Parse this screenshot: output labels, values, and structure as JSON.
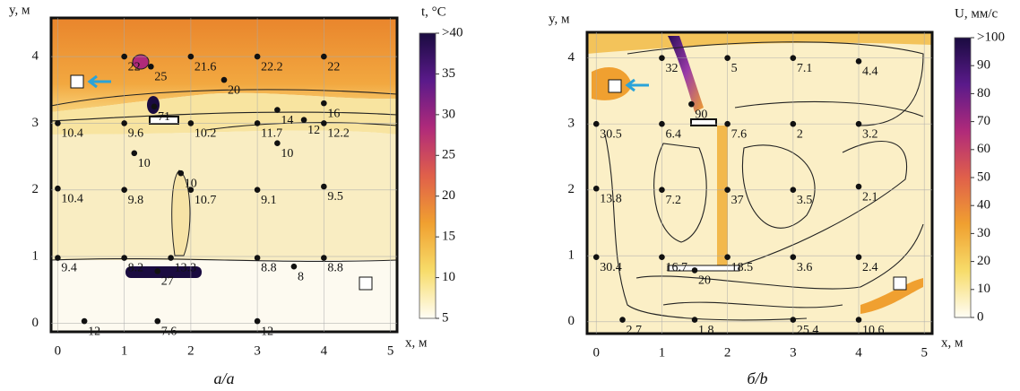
{
  "chart_data": [
    {
      "type": "heatmap",
      "caption": "а/a",
      "x_label": "x, м",
      "y_label": "y, м",
      "colorbar_label": "t, °C",
      "xlim": [
        -0.1,
        5.1
      ],
      "ylim": [
        -0.13,
        4.58
      ],
      "xticks": [
        0,
        1,
        2,
        3,
        4,
        5
      ],
      "yticks": [
        0,
        1,
        2,
        3,
        4
      ],
      "grid": true,
      "colorbar_lim": [
        5,
        40
      ],
      "colorbar_ticks": [
        5,
        10,
        15,
        20,
        25,
        30,
        35,
        {
          "value": 40,
          "label": ">40"
        }
      ],
      "colormap": [
        "#fffdf5",
        "#f7dc6a",
        "#f0a030",
        "#e0604a",
        "#b02a7a",
        "#5a1a8a",
        "#1a0b40"
      ],
      "points": {
        "x": [
          1,
          1.4,
          2,
          2.5,
          3,
          4,
          1.45,
          1,
          0,
          2,
          3.3,
          4,
          3,
          3.7,
          4,
          1.15,
          3.3,
          1.85,
          4,
          0,
          1,
          2,
          3,
          0,
          1,
          1.7,
          3,
          3.55,
          4,
          1.5,
          0.4,
          1.5,
          3
        ],
        "y": [
          4,
          3.85,
          4,
          3.65,
          4,
          4,
          3.25,
          3,
          3,
          3,
          3.2,
          3.3,
          3,
          3.05,
          3,
          2.55,
          2.7,
          2.25,
          2.05,
          2.02,
          2,
          2,
          2,
          0.98,
          0.98,
          0.98,
          0.98,
          0.85,
          0.98,
          0.78,
          0.03,
          0.03,
          0.03
        ],
        "values": [
          22,
          25,
          21.6,
          20,
          22.2,
          22,
          71,
          9.6,
          10.4,
          10.2,
          14,
          16,
          11.7,
          12,
          12.2,
          10,
          10,
          10,
          9.5,
          10.4,
          9.8,
          10.7,
          9.1,
          9.4,
          8.2,
          13.3,
          8.8,
          8,
          8.8,
          27,
          12,
          7.6,
          12
        ]
      }
    },
    {
      "type": "heatmap",
      "caption": "б/b",
      "x_label": "x, м",
      "y_label": "y, м",
      "colorbar_label": "U, мм/с",
      "xlim": [
        -0.14,
        5.12
      ],
      "ylim": [
        -0.18,
        4.39
      ],
      "xticks": [
        0,
        1,
        2,
        3,
        4,
        5
      ],
      "yticks": [
        0,
        1,
        2,
        3,
        4
      ],
      "grid": true,
      "colorbar_lim": [
        0,
        100
      ],
      "colorbar_ticks": [
        0,
        10,
        20,
        30,
        40,
        50,
        60,
        70,
        80,
        90,
        {
          "value": 100,
          "label": ">100"
        }
      ],
      "colormap": [
        "#fffdf5",
        "#f7dc6a",
        "#f0a030",
        "#e0604a",
        "#b02a7a",
        "#5a1a8a",
        "#1a0b40"
      ],
      "points": {
        "x": [
          1,
          2,
          3,
          4,
          1.45,
          0,
          1,
          2,
          3,
          4,
          0,
          1,
          2,
          3,
          4,
          0,
          1,
          2,
          3,
          4,
          1.5,
          0.4,
          1.5,
          3,
          4
        ],
        "y": [
          4,
          4,
          4,
          3.95,
          3.3,
          3,
          3,
          3,
          3,
          3,
          2.02,
          2,
          2,
          2,
          2.05,
          0.98,
          0.98,
          0.98,
          0.98,
          0.98,
          0.78,
          0.03,
          0.03,
          0.03,
          0.03
        ],
        "values": [
          32,
          5,
          7.1,
          4.4,
          90,
          30.5,
          6.4,
          7.6,
          2,
          3.2,
          13.8,
          7.2,
          37,
          3.5,
          2.1,
          30.4,
          16.7,
          18.5,
          3.6,
          2.4,
          20,
          2.7,
          1.8,
          25.4,
          10.6
        ]
      }
    }
  ]
}
